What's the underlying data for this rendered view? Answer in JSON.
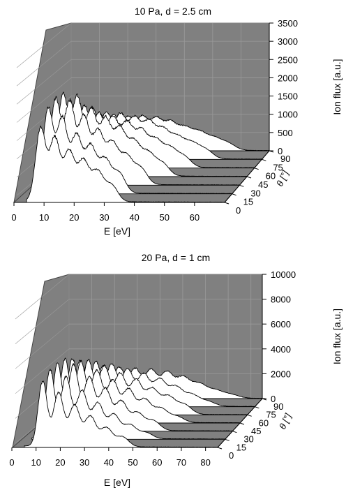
{
  "chart_data": [
    {
      "type": "area",
      "title": "10 Pa, d = 2.5 cm",
      "xlabel": "E [eV]",
      "ylabel": "Ion flux [a.u.]",
      "zlabel": "θ [°]",
      "xlim": [
        0,
        70
      ],
      "ylim": [
        0,
        3500
      ],
      "x_ticks": [
        "0",
        "10",
        "20",
        "30",
        "40",
        "50",
        "60"
      ],
      "y_ticks": [
        "0",
        "500",
        "1000",
        "1500",
        "2000",
        "2500",
        "3000",
        "3500"
      ],
      "z_ticks": [
        "0",
        "15",
        "30",
        "45",
        "60",
        "75",
        "90"
      ],
      "angles": [
        0,
        15,
        30,
        45,
        60,
        75,
        90
      ],
      "grid": true,
      "series": [
        {
          "theta": 0,
          "peaks": [
            [
              5,
              2000,
              1.8
            ],
            [
              10,
              1700,
              1.8
            ],
            [
              15,
              1350,
              1.9
            ],
            [
              20,
              1100,
              2.0
            ],
            [
              25,
              800,
              2.1
            ],
            [
              30,
              450,
              2.2
            ]
          ]
        },
        {
          "theta": 15,
          "peaks": [
            [
              5,
              2300,
              1.8
            ],
            [
              10,
              2000,
              1.8
            ],
            [
              15,
              1550,
              1.9
            ],
            [
              20,
              1250,
              2.0
            ],
            [
              25,
              900,
              2.1
            ],
            [
              30,
              550,
              2.2
            ]
          ]
        },
        {
          "theta": 30,
          "peaks": [
            [
              5,
              2300,
              1.8
            ],
            [
              10,
              2200,
              1.8
            ],
            [
              15,
              1800,
              1.9
            ],
            [
              20,
              1400,
              2.0
            ],
            [
              25,
              1100,
              2.1
            ],
            [
              30,
              750,
              2.2
            ],
            [
              35,
              450,
              2.3
            ]
          ]
        },
        {
          "theta": 45,
          "peaks": [
            [
              5,
              2200,
              1.8
            ],
            [
              10,
              2100,
              1.8
            ],
            [
              15,
              1750,
              1.9
            ],
            [
              20,
              1500,
              2.0
            ],
            [
              25,
              1250,
              2.1
            ],
            [
              30,
              900,
              2.2
            ],
            [
              35,
              600,
              2.3
            ],
            [
              40,
              350,
              2.4
            ]
          ]
        },
        {
          "theta": 60,
          "peaks": [
            [
              5,
              1700,
              1.8
            ],
            [
              10,
              1600,
              1.8
            ],
            [
              15,
              1400,
              1.9
            ],
            [
              20,
              1300,
              2.0
            ],
            [
              25,
              1150,
              2.1
            ],
            [
              30,
              950,
              2.2
            ],
            [
              35,
              700,
              2.3
            ],
            [
              40,
              500,
              2.4
            ],
            [
              45,
              300,
              2.5
            ]
          ]
        },
        {
          "theta": 75,
          "peaks": [
            [
              5,
              1400,
              1.8
            ],
            [
              10,
              1350,
              1.8
            ],
            [
              15,
              1200,
              1.9
            ],
            [
              20,
              1150,
              2.0
            ],
            [
              25,
              1050,
              2.1
            ],
            [
              30,
              950,
              2.2
            ],
            [
              35,
              750,
              2.3
            ],
            [
              40,
              550,
              2.4
            ],
            [
              45,
              400,
              2.5
            ],
            [
              50,
              250,
              2.6
            ]
          ]
        },
        {
          "theta": 90,
          "peaks": [
            [
              5,
              1000,
              1.8
            ],
            [
              10,
              950,
              1.8
            ],
            [
              15,
              900,
              1.9
            ],
            [
              20,
              850,
              2.0
            ],
            [
              25,
              850,
              2.1
            ],
            [
              30,
              800,
              2.2
            ],
            [
              35,
              700,
              2.3
            ],
            [
              40,
              550,
              2.4
            ],
            [
              45,
              450,
              2.5
            ],
            [
              50,
              300,
              2.6
            ],
            [
              55,
              200,
              2.8
            ]
          ]
        }
      ]
    },
    {
      "type": "area",
      "title": "20 Pa, d = 1 cm",
      "xlabel": "E [eV]",
      "ylabel": "Ion flux [a.u.]",
      "zlabel": "θ [°]",
      "xlim": [
        0,
        85
      ],
      "ylim": [
        0,
        10000
      ],
      "x_ticks": [
        "0",
        "10",
        "20",
        "30",
        "40",
        "50",
        "60",
        "70",
        "80"
      ],
      "y_ticks": [
        "0",
        "2000",
        "4000",
        "6000",
        "8000",
        "10000"
      ],
      "z_ticks": [
        "0",
        "15",
        "30",
        "45",
        "60",
        "75",
        "90"
      ],
      "angles": [
        0,
        15,
        30,
        45,
        60,
        75,
        90
      ],
      "grid": true,
      "series": [
        {
          "theta": 0,
          "peaks": [
            [
              8,
              5200,
              2.0
            ],
            [
              15,
              4300,
              2.2
            ],
            [
              22,
              3300,
              2.4
            ],
            [
              29,
              2400,
              2.5
            ],
            [
              36,
              1500,
              2.6
            ],
            [
              43,
              800,
              2.8
            ]
          ]
        },
        {
          "theta": 15,
          "peaks": [
            [
              8,
              5500,
              2.0
            ],
            [
              15,
              4900,
              2.2
            ],
            [
              22,
              3800,
              2.4
            ],
            [
              29,
              2800,
              2.5
            ],
            [
              36,
              1900,
              2.6
            ],
            [
              43,
              1100,
              2.8
            ],
            [
              50,
              500,
              3.0
            ]
          ]
        },
        {
          "theta": 30,
          "peaks": [
            [
              8,
              5300,
              2.0
            ],
            [
              15,
              5200,
              2.2
            ],
            [
              22,
              4200,
              2.4
            ],
            [
              29,
              3300,
              2.5
            ],
            [
              36,
              2300,
              2.6
            ],
            [
              43,
              1400,
              2.8
            ],
            [
              50,
              800,
              3.0
            ]
          ]
        },
        {
          "theta": 45,
          "peaks": [
            [
              8,
              5000,
              2.0
            ],
            [
              15,
              4800,
              2.2
            ],
            [
              22,
              4100,
              2.4
            ],
            [
              29,
              3300,
              2.5
            ],
            [
              36,
              2600,
              2.6
            ],
            [
              43,
              1800,
              2.8
            ],
            [
              50,
              1100,
              3.0
            ],
            [
              57,
              500,
              3.2
            ]
          ]
        },
        {
          "theta": 60,
          "peaks": [
            [
              8,
              4400,
              2.0
            ],
            [
              15,
              4300,
              2.2
            ],
            [
              22,
              3800,
              2.4
            ],
            [
              29,
              3200,
              2.5
            ],
            [
              36,
              2700,
              2.6
            ],
            [
              43,
              2000,
              2.8
            ],
            [
              50,
              1400,
              3.0
            ],
            [
              57,
              800,
              3.2
            ]
          ]
        },
        {
          "theta": 75,
          "peaks": [
            [
              8,
              3600,
              2.0
            ],
            [
              15,
              3500,
              2.2
            ],
            [
              22,
              3300,
              2.4
            ],
            [
              29,
              2900,
              2.5
            ],
            [
              36,
              2500,
              2.6
            ],
            [
              43,
              2100,
              2.8
            ],
            [
              50,
              1500,
              3.0
            ],
            [
              57,
              900,
              3.2
            ],
            [
              64,
              400,
              3.4
            ]
          ]
        },
        {
          "theta": 90,
          "peaks": [
            [
              8,
              2600,
              2.0
            ],
            [
              15,
              2500,
              2.2
            ],
            [
              22,
              2400,
              2.4
            ],
            [
              29,
              2300,
              2.5
            ],
            [
              36,
              2200,
              2.6
            ],
            [
              43,
              2000,
              2.8
            ],
            [
              50,
              1600,
              3.0
            ],
            [
              57,
              1100,
              3.2
            ],
            [
              64,
              600,
              3.4
            ],
            [
              71,
              300,
              3.6
            ]
          ]
        }
      ]
    }
  ]
}
